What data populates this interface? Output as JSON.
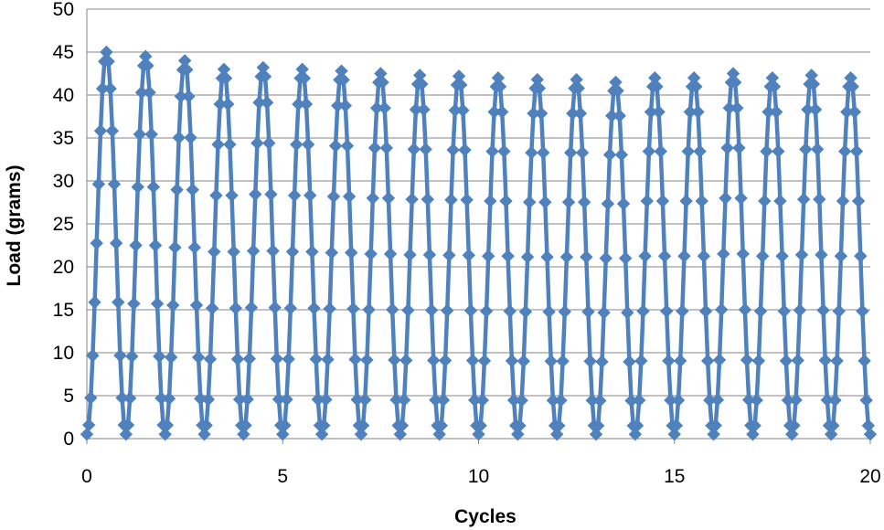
{
  "chart_data": {
    "type": "line",
    "title": "",
    "xlabel": "Cycles",
    "ylabel": "Load (grams)",
    "xlim": [
      0,
      20
    ],
    "ylim": [
      0,
      50
    ],
    "x_ticks": [
      0,
      5,
      10,
      15,
      20
    ],
    "y_ticks": [
      0,
      5,
      10,
      15,
      20,
      25,
      30,
      35,
      40,
      45,
      50
    ],
    "grid": true,
    "legend": "none",
    "series": [
      {
        "color": "#4F81BD",
        "marker": "diamond",
        "points_per_cycle": 20,
        "peaks": [
          45,
          44.5,
          44,
          43,
          43.2,
          43,
          42.8,
          42.5,
          42.3,
          42.2,
          42,
          41.8,
          41.8,
          41.5,
          42,
          42,
          42.5,
          42,
          42.3,
          42
        ],
        "min_value": 0.5
      }
    ]
  }
}
